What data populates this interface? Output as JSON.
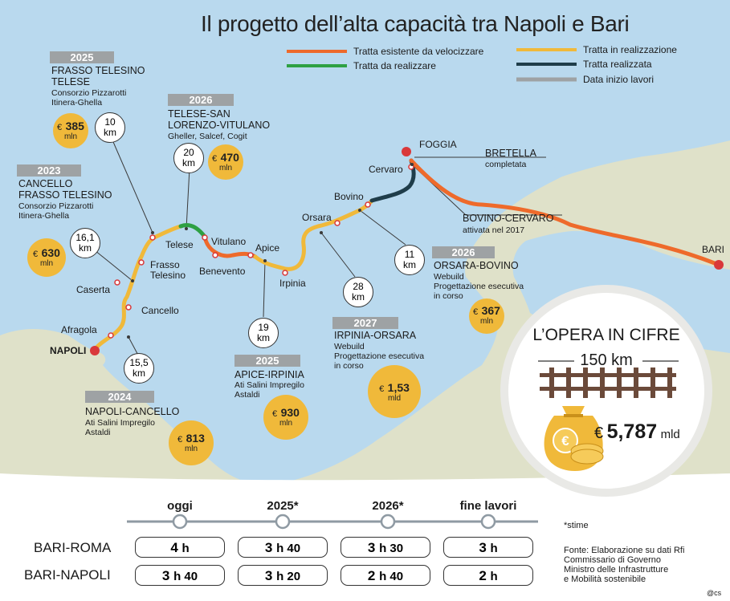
{
  "title": "Il progetto dell’alta capacità tra Napoli e Bari",
  "legend": [
    {
      "label": "Tratta esistente da velocizzare",
      "color": "#ee6a2b"
    },
    {
      "label": "Tratta da realizzare",
      "color": "#2ea043"
    },
    {
      "label": "Tratta in realizzazione",
      "color": "#f0b93a"
    },
    {
      "label": "Tratta realizzata",
      "color": "#1f3d4a"
    },
    {
      "label": "Data inizio lavori",
      "color": "#9ea2a4"
    }
  ],
  "lots": [
    {
      "year": "2025",
      "name1": "FRASSO TELESINO",
      "name2": "TELESE",
      "sub1": "Consorzio Pizzarotti",
      "sub2": "Itinera-Ghella",
      "km1": "10",
      "km2": "km",
      "amount": "385",
      "unit": "mln"
    },
    {
      "year": "2026",
      "name1": "TELESE-SAN",
      "name2": "LORENZO-VITULANO",
      "sub1": "Gheller, Salcef, Cogit",
      "km1": "20",
      "km2": "km",
      "amount": "470",
      "unit": "mln"
    },
    {
      "year": "2023",
      "name1": "CANCELLO",
      "name2": "FRASSO TELESINO",
      "sub1": "Consorzio Pizzarotti",
      "sub2": "Itinera-Ghella",
      "km1": "16,1",
      "km2": "km",
      "amount": "630",
      "unit": "mln"
    },
    {
      "year": "2024",
      "name1": "NAPOLI-CANCELLO",
      "sub1": "Ati Salini Impregilo",
      "sub2": "Astaldi",
      "km1": "15,5",
      "km2": "km",
      "amount": "813",
      "unit": "mln"
    },
    {
      "year": "2025",
      "name1": "APICE-IRPINIA",
      "sub1": "Ati Salini Impregilo",
      "sub2": "Astaldi",
      "km1": "19",
      "km2": "km",
      "amount": "930",
      "unit": "mln"
    },
    {
      "year": "2027",
      "name1": "IRPINIA-ORSARA",
      "sub1": "Webuild",
      "sub2": "Progettazione esecutiva",
      "sub3": "in corso",
      "km1": "28",
      "km2": "km",
      "amount": "1,53",
      "unit": "mld"
    },
    {
      "year": "2026",
      "name1": "ORSARA-BOVINO",
      "sub1": "Webuild",
      "sub2": "Progettazione esecutiva",
      "sub3": "in corso",
      "km1": "11",
      "km2": "km",
      "amount": "367",
      "unit": "mln"
    }
  ],
  "currency": "€",
  "bovino_cervaro": {
    "name": "BOVINO-CERVARO",
    "sub": "attivata nel 2017"
  },
  "bretella": {
    "name": "BRETELLA",
    "sub": "completata"
  },
  "stations": [
    "NAPOLI",
    "Afragola",
    "Caserta",
    "Cancello",
    "Frasso",
    "Telesino",
    "Telese",
    "Vitulano",
    "Benevento",
    "Apice",
    "Irpinia",
    "Orsara",
    "Bovino",
    "Cervaro",
    "FOGGIA",
    "BARI"
  ],
  "summary": {
    "title": "L’OPERA IN CIFRE",
    "length": "150 km",
    "currency": "€",
    "total": "5,787",
    "unit": "mld"
  },
  "timeline": {
    "columns": [
      "oggi",
      "2025*",
      "2026*",
      "fine lavori"
    ],
    "rows": [
      {
        "label": "BARI-ROMA",
        "values": [
          [
            "4",
            "h"
          ],
          [
            "3",
            "h 40"
          ],
          [
            "3",
            "h 30"
          ],
          [
            "3",
            "h"
          ]
        ]
      },
      {
        "label": "BARI-NAPOLI",
        "values": [
          [
            "3",
            "h 40"
          ],
          [
            "3",
            "h 20"
          ],
          [
            "2",
            "h 40"
          ],
          [
            "2",
            "h"
          ]
        ]
      }
    ]
  },
  "footnote": "*stime",
  "source": [
    "Fonte: Elaborazione su dati Rfi",
    "Commissario di Governo",
    "Ministro delle Infrastrutture",
    "e Mobilità sostenibile"
  ],
  "credit": "@cs"
}
